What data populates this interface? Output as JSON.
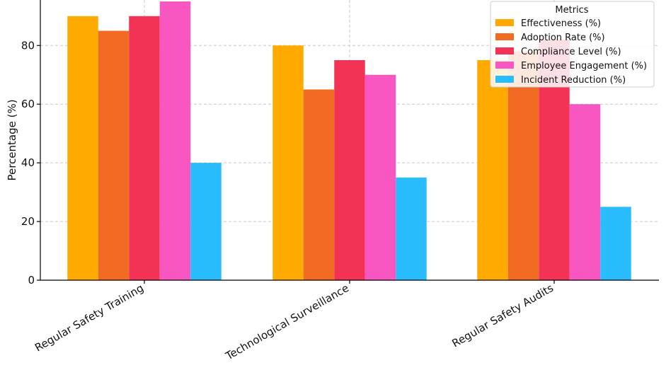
{
  "chart_data": {
    "type": "bar",
    "categories": [
      "Regular Safety Training",
      "Technological Surveillance",
      "Regular Safety Audits"
    ],
    "series": [
      {
        "name": "Effectiveness (%)",
        "values": [
          90,
          80,
          75
        ],
        "color": "#FFAA00"
      },
      {
        "name": "Adoption Rate (%)",
        "values": [
          85,
          65,
          78
        ],
        "color": "#F26B22"
      },
      {
        "name": "Compliance Level (%)",
        "values": [
          90,
          75,
          82
        ],
        "color": "#F23355"
      },
      {
        "name": "Employee Engagement (%)",
        "values": [
          95,
          70,
          60
        ],
        "color": "#F857C1"
      },
      {
        "name": "Incident Reduction (%)",
        "values": [
          40,
          35,
          25
        ],
        "color": "#29BDFD"
      }
    ],
    "ylabel": "Percentage (%)",
    "xlabel": "",
    "yticks": [
      0,
      20,
      40,
      60,
      80
    ],
    "ylim": [
      0,
      95.5
    ],
    "grid": true,
    "legend": {
      "title": "Metrics",
      "position": "top-right"
    }
  }
}
